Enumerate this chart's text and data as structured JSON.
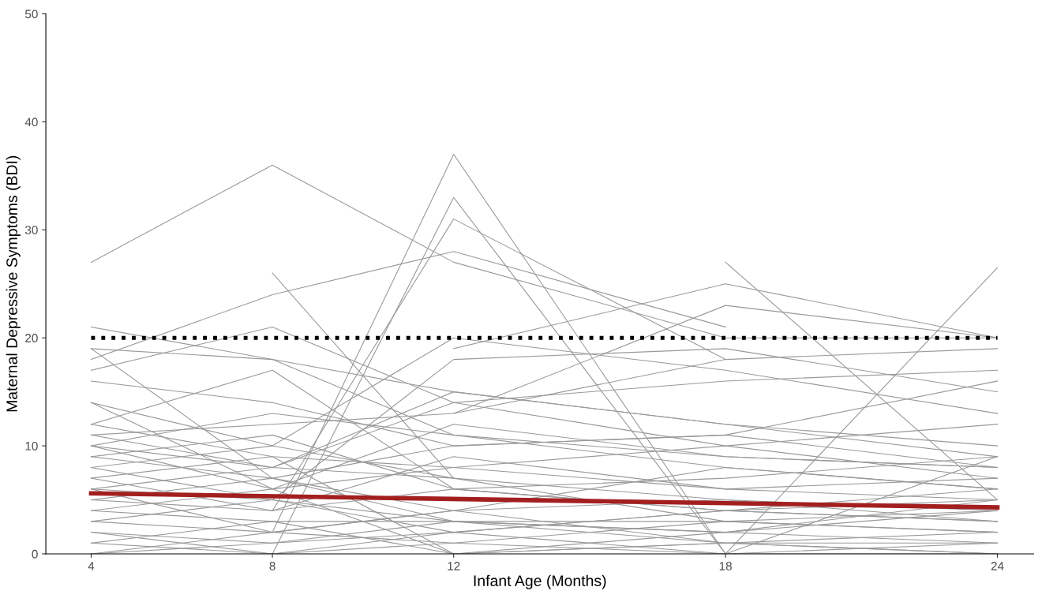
{
  "chart_data": {
    "type": "line",
    "xlabel": "Infant Age (Months)",
    "ylabel": "Maternal Depressive Symptoms (BDI)",
    "x": [
      4,
      8,
      12,
      18,
      24
    ],
    "xlim": [
      3,
      24.8
    ],
    "xticks": [
      4,
      8,
      12,
      18,
      24
    ],
    "ylim": [
      0,
      50
    ],
    "yticks": [
      0,
      10,
      20,
      30,
      40,
      50
    ],
    "grid": false,
    "legend": false,
    "marker": "none",
    "line_style": "solid",
    "series": [
      {
        "color": "#999999",
        "values": [
          27,
          36,
          27,
          20,
          20
        ]
      },
      {
        "color": "#999999",
        "values": [
          null,
          2,
          37,
          0,
          9
        ]
      },
      {
        "color": "#999999",
        "values": [
          null,
          0,
          33,
          0,
          null
        ]
      },
      {
        "color": "#999999",
        "values": [
          null,
          4,
          31,
          18,
          null
        ]
      },
      {
        "color": "#999999",
        "values": [
          18,
          24,
          28,
          21,
          null
        ]
      },
      {
        "color": "#999999",
        "values": [
          null,
          26,
          7,
          null,
          null
        ]
      },
      {
        "color": "#999999",
        "values": [
          null,
          null,
          19,
          25,
          20
        ]
      },
      {
        "color": "#999999",
        "values": [
          null,
          null,
          13,
          23,
          20
        ]
      },
      {
        "color": "#999999",
        "values": [
          null,
          null,
          null,
          27,
          5
        ]
      },
      {
        "color": "#999999",
        "values": [
          null,
          null,
          null,
          0,
          26.5
        ]
      },
      {
        "color": "#999999",
        "values": [
          21,
          18,
          11,
          8,
          6
        ]
      },
      {
        "color": "#999999",
        "values": [
          19,
          18,
          15,
          12,
          9
        ]
      },
      {
        "color": "#999999",
        "values": [
          17,
          21,
          14,
          10,
          7
        ]
      },
      {
        "color": "#999999",
        "values": [
          14,
          10,
          20,
          17,
          13
        ]
      },
      {
        "color": "#999999",
        "values": [
          12,
          17,
          6,
          4,
          3
        ]
      },
      {
        "color": "#999999",
        "values": [
          11,
          8,
          15,
          12,
          10
        ]
      },
      {
        "color": "#999999",
        "values": [
          10,
          6,
          12,
          9,
          8
        ]
      },
      {
        "color": "#999999",
        "values": [
          9,
          11,
          6,
          4,
          5
        ]
      },
      {
        "color": "#999999",
        "values": [
          8,
          10,
          7,
          5,
          4
        ]
      },
      {
        "color": "#999999",
        "values": [
          7,
          4,
          9,
          6,
          7
        ]
      },
      {
        "color": "#999999",
        "values": [
          6,
          5,
          3,
          2,
          4
        ]
      },
      {
        "color": "#999999",
        "values": [
          5,
          7,
          4,
          8,
          6
        ]
      },
      {
        "color": "#999999",
        "values": [
          4,
          3,
          3,
          3,
          2
        ]
      },
      {
        "color": "#999999",
        "values": [
          3,
          2,
          1,
          0,
          1
        ]
      },
      {
        "color": "#999999",
        "values": [
          2,
          0,
          2,
          4,
          3
        ]
      },
      {
        "color": "#999999",
        "values": [
          1,
          3,
          0,
          1,
          0
        ]
      },
      {
        "color": "#999999",
        "values": [
          0,
          1,
          2,
          0,
          0
        ]
      },
      {
        "color": "#999999",
        "values": [
          16,
          14,
          10,
          11,
          8
        ]
      },
      {
        "color": "#999999",
        "values": [
          12,
          9,
          8,
          6,
          5
        ]
      },
      {
        "color": "#999999",
        "values": [
          11,
          12,
          13,
          18,
          19
        ]
      },
      {
        "color": "#999999",
        "values": [
          10,
          8,
          14,
          16,
          17
        ]
      },
      {
        "color": "#999999",
        "values": [
          9,
          7,
          10,
          11,
          16
        ]
      },
      {
        "color": "#999999",
        "values": [
          8,
          5,
          18,
          19,
          15
        ]
      },
      {
        "color": "#999999",
        "values": [
          7,
          9,
          0,
          2,
          1
        ]
      },
      {
        "color": "#999999",
        "values": [
          6,
          2,
          4,
          5,
          3
        ]
      },
      {
        "color": "#999999",
        "values": [
          5,
          4,
          6,
          7,
          9
        ]
      },
      {
        "color": "#999999",
        "values": [
          4,
          6,
          8,
          10,
          12
        ]
      },
      {
        "color": "#999999",
        "values": [
          3,
          5,
          2,
          4,
          6
        ]
      },
      {
        "color": "#999999",
        "values": [
          2,
          1,
          3,
          2,
          5
        ]
      },
      {
        "color": "#999999",
        "values": [
          1,
          0,
          1,
          3,
          2
        ]
      },
      {
        "color": "#999999",
        "values": [
          0,
          2,
          4,
          1,
          1
        ]
      },
      {
        "color": "#999999",
        "values": [
          14,
          6,
          0,
          1,
          0
        ]
      },
      {
        "color": "#999999",
        "values": [
          19,
          7,
          3,
          1,
          2
        ]
      },
      {
        "color": "#999999",
        "values": [
          10,
          13,
          11,
          9,
          8
        ]
      },
      {
        "color": "#999999",
        "values": [
          6,
          8,
          7,
          3,
          4
        ]
      },
      {
        "color": "#a31f1f",
        "x": [
          4,
          24
        ],
        "values": [
          5.6,
          4.3
        ]
      }
    ],
    "ref_lines": [
      {
        "axis": "y",
        "value": 20,
        "color": "#000000",
        "line_style": "dotted"
      }
    ]
  }
}
